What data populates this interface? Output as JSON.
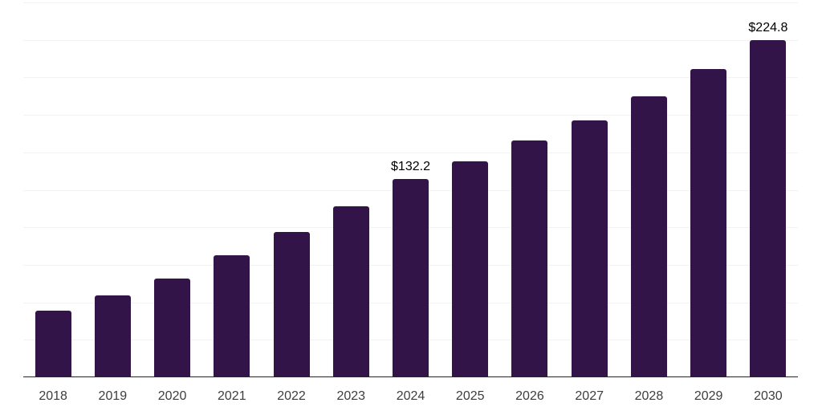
{
  "chart_data": {
    "type": "bar",
    "title": "",
    "xlabel": "",
    "ylabel": "",
    "categories": [
      "2018",
      "2019",
      "2020",
      "2021",
      "2022",
      "2023",
      "2024",
      "2025",
      "2026",
      "2027",
      "2028",
      "2029",
      "2030"
    ],
    "values": [
      44.2,
      54.8,
      66.0,
      81.4,
      96.9,
      114.2,
      132.2,
      144.1,
      158.1,
      171.4,
      187.4,
      205.5,
      224.8
    ],
    "bar_labels": [
      null,
      null,
      null,
      null,
      null,
      null,
      "$132.2",
      null,
      null,
      null,
      null,
      null,
      "$224.8"
    ],
    "ylim": [
      0,
      250
    ],
    "gridline_step": 25,
    "grid": true,
    "legend": "none",
    "colors": {
      "bar": "#331449",
      "gridline": "#f2f2f2",
      "axis": "#262626",
      "tick_label": "#3d3d3d",
      "value_label": "#000000",
      "background": "#ffffff"
    }
  }
}
